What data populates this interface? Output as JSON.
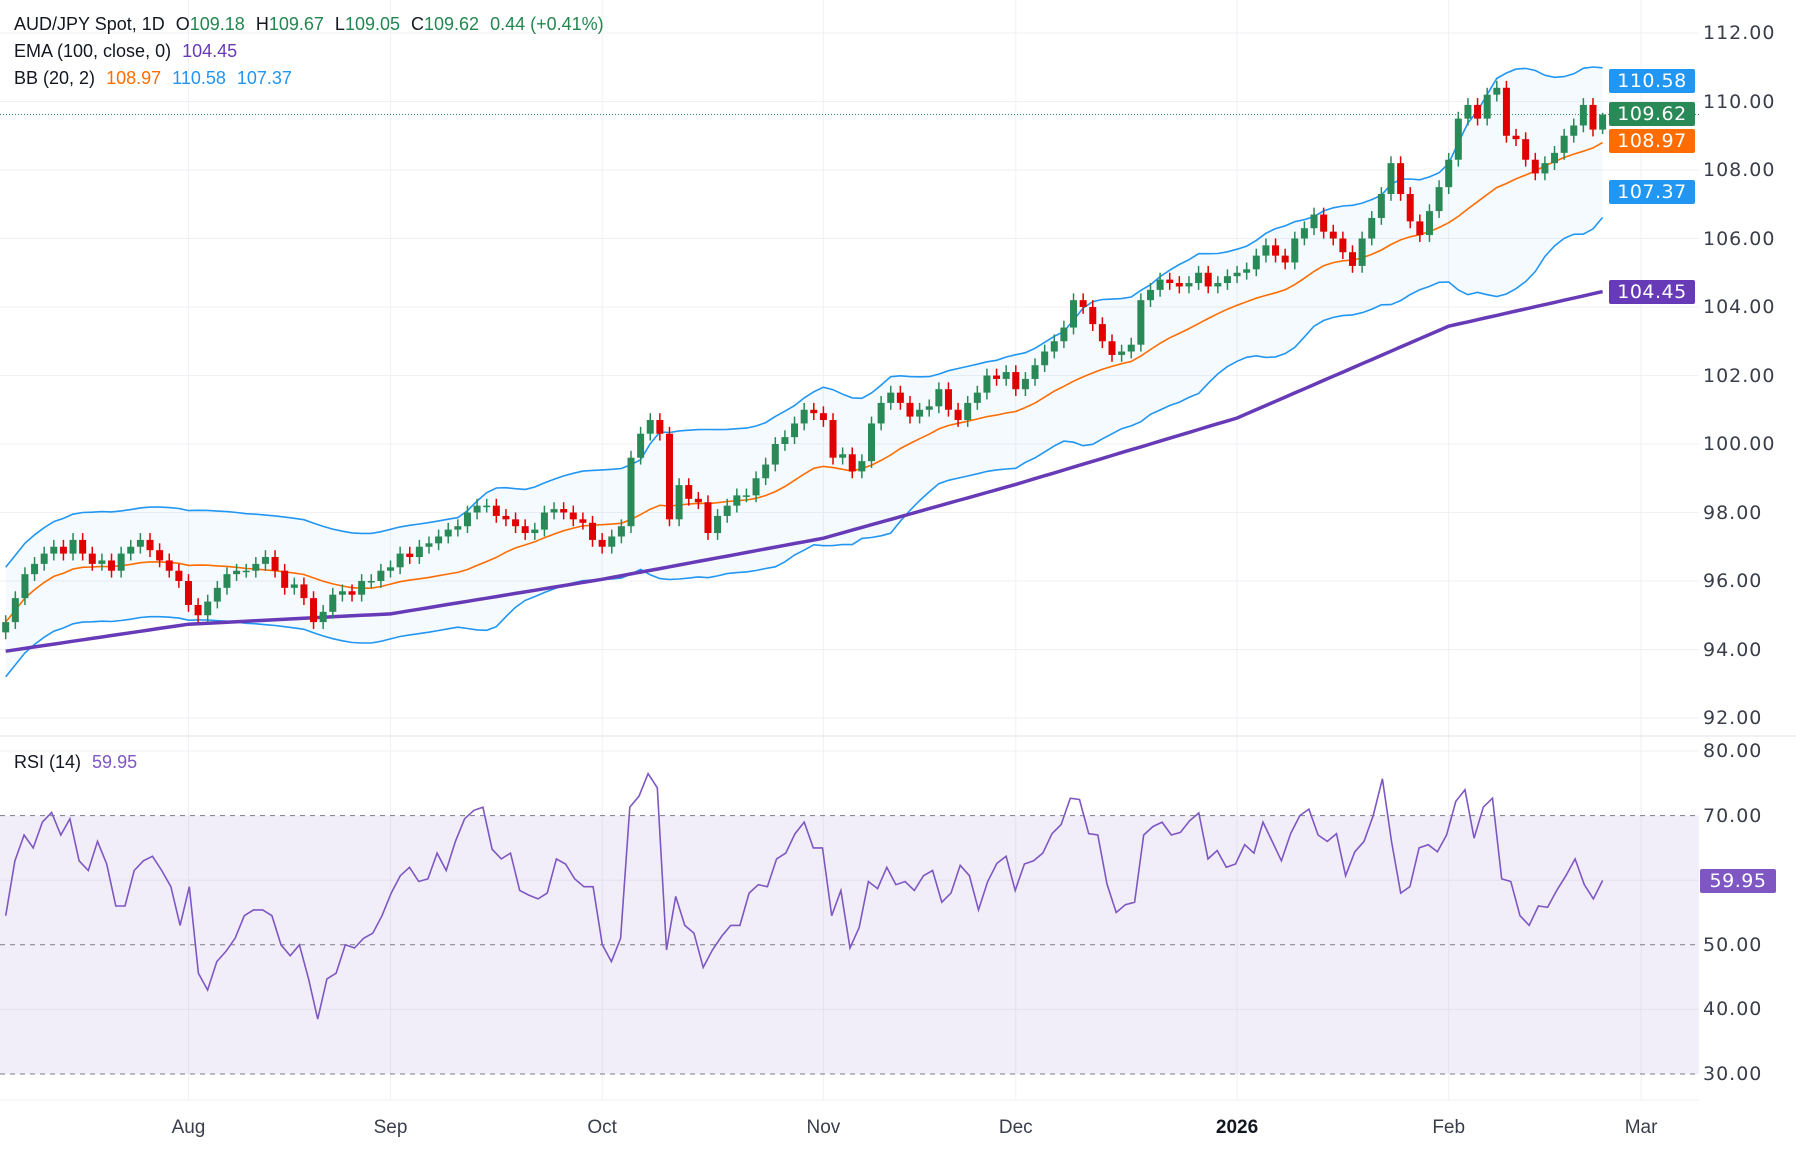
{
  "header": {
    "symbol": "AUD/JPY Spot, 1D",
    "o_label": "O",
    "o": "109.18",
    "h_label": "H",
    "h": "109.67",
    "l_label": "L",
    "l": "109.05",
    "c_label": "C",
    "c": "109.62",
    "change": "0.44 (+0.41%)"
  },
  "ema_legend": {
    "label": "EMA (100, close, 0)",
    "value": "104.45"
  },
  "bb_legend": {
    "label": "BB (20, 2)",
    "basis": "108.97",
    "upper": "110.58",
    "lower": "107.37"
  },
  "rsi_legend": {
    "label": "RSI (14)",
    "value": "59.95"
  },
  "colors": {
    "up": "#2a8a57",
    "down": "#e00000",
    "ema": "#673ab7",
    "bb_basis": "#ff6d00",
    "bb_band": "#2196f3",
    "rsi": "#7e57c2",
    "grid": "#f0f1f4",
    "last_price": "#2a8a57"
  },
  "chart_data": [
    {
      "type": "candlestick",
      "yticks": [
        "112.00",
        "110.00",
        "108.00",
        "106.00",
        "104.00",
        "102.00",
        "100.00",
        "98.00",
        "96.00",
        "94.00",
        "92.00"
      ],
      "ylim": [
        91.4,
        112.4
      ],
      "grid": true,
      "closes_by_month": {
        "2025-07": [
          94.8,
          95.5,
          96.2,
          96.5,
          96.8,
          97.0,
          96.8,
          97.2,
          96.8,
          96.5,
          96.6,
          96.3,
          96.8,
          97.0,
          97.2,
          96.9,
          96.6,
          96.3,
          96.0
        ],
        "2025-08": [
          95.3,
          95.0,
          95.4,
          95.8,
          96.2,
          96.3,
          96.3,
          96.5,
          96.7,
          96.3,
          95.8,
          95.9,
          95.5,
          94.8,
          95.1,
          95.6,
          95.7,
          95.6,
          96.0,
          96.0,
          96.3
        ],
        "2025-09": [
          96.4,
          96.8,
          96.7,
          97.0,
          97.1,
          97.3,
          97.5,
          97.6,
          98.0,
          98.2,
          98.2,
          97.9,
          97.8,
          97.6,
          97.4,
          97.5,
          98.0,
          98.1,
          98.0,
          97.8,
          97.7,
          97.2
        ],
        "2025-10": [
          97.0,
          97.3,
          97.6,
          99.6,
          100.3,
          100.7,
          100.3,
          97.8,
          98.8,
          98.4,
          98.3,
          97.4,
          97.9,
          98.2,
          98.5,
          98.5,
          99.0,
          99.4,
          100.0,
          100.2,
          100.6,
          101.0,
          100.9
        ],
        "2025-11": [
          100.7,
          99.6,
          99.7,
          99.2,
          99.5,
          100.6,
          101.2,
          101.5,
          101.2,
          100.8,
          101.0,
          101.1,
          101.6,
          101.0,
          100.7,
          101.2,
          101.5,
          102.0,
          101.9,
          102.1
        ],
        "2025-12": [
          101.6,
          101.9,
          102.3,
          102.7,
          103.0,
          103.4,
          104.2,
          104.0,
          103.5,
          103.0,
          102.6,
          102.7,
          102.9,
          104.2,
          104.5,
          104.8,
          104.7,
          104.6,
          104.7,
          105.0,
          104.6,
          104.7,
          104.9
        ],
        "2026-01": [
          105.0,
          105.1,
          105.5,
          105.8,
          105.5,
          105.3,
          106.0,
          106.3,
          106.7,
          106.2,
          106.0,
          105.6,
          105.2,
          106.0,
          106.6,
          107.3,
          108.2,
          107.3,
          106.5,
          106.1,
          106.8,
          107.5
        ],
        "2026-02": [
          108.3,
          109.5,
          109.9,
          109.5,
          110.2,
          110.4,
          109.0,
          108.9,
          108.3,
          107.9,
          108.2,
          108.5,
          109.0,
          109.3,
          109.9,
          109.18,
          109.62
        ]
      },
      "last_candle": {
        "open": 109.18,
        "high": 109.67,
        "low": 109.05,
        "close": 109.62
      },
      "ema100_at_month_start": {
        "2025-07": 93.95,
        "2025-08": 94.74,
        "2025-09": 95.04,
        "2025-10": 96.05,
        "2025-11": 97.25,
        "2025-12": 98.82,
        "2026-01": 100.76,
        "2026-02": 103.44,
        "last": 104.45
      },
      "badges": [
        {
          "value": "110.58",
          "series": "bb_upper"
        },
        {
          "value": "109.62",
          "series": "last_price"
        },
        {
          "value": "108.97",
          "series": "bb_basis"
        },
        {
          "value": "107.37",
          "series": "bb_lower"
        },
        {
          "value": "104.45",
          "series": "ema"
        }
      ]
    },
    {
      "type": "line",
      "title": "RSI (14)",
      "yticks": [
        "80.00",
        "70.00",
        "50.00",
        "40.00",
        "30.00"
      ],
      "ylim": [
        24,
        82
      ],
      "bands": [
        70,
        50,
        30
      ],
      "values": [
        54.5,
        63,
        67,
        65,
        69,
        70.5,
        67,
        69.5,
        63,
        61.5,
        66,
        62.5,
        56,
        56,
        61.5,
        63,
        63.7,
        61.5,
        59,
        53,
        59,
        45.6,
        43,
        47.4,
        49,
        51,
        54.5,
        55.4,
        55.4,
        54.5,
        50,
        48.3,
        50,
        44.7,
        38.5,
        44.7,
        45.6,
        50,
        49.5,
        51,
        51.8,
        54.5,
        58,
        60.7,
        62,
        59.8,
        60.2,
        64.2,
        61.5,
        66,
        69.5,
        70.8,
        71.3,
        64.8,
        63.3,
        64.2,
        58.4,
        57.7,
        57.1,
        58,
        63.3,
        62.5,
        60.2,
        59,
        59,
        50,
        47.4,
        51,
        71.3,
        73,
        76.5,
        74.3,
        49.2,
        57.5,
        53,
        51.8,
        46.5,
        49.2,
        51.3,
        53,
        53,
        58,
        59.3,
        59,
        63.3,
        64.2,
        67.2,
        69,
        65,
        65,
        54.5,
        58.4,
        49.5,
        52.7,
        59.8,
        58.7,
        62,
        59.3,
        59.8,
        58.4,
        60.7,
        61.5,
        56.6,
        58,
        62.3,
        60.7,
        55.4,
        59.8,
        62.6,
        63.7,
        58.4,
        62.5,
        63,
        64.2,
        67.2,
        68.6,
        72.7,
        72.5,
        67.2,
        67,
        59.4,
        55,
        56.2,
        56.6,
        67,
        68.3,
        69,
        67,
        67.4,
        69.2,
        70.4,
        63.3,
        64.6,
        62,
        62.5,
        65.5,
        64.2,
        69,
        66,
        63,
        67.2,
        70,
        71,
        67,
        66,
        67.2,
        60.7,
        64.4,
        66,
        70,
        75.7,
        66,
        58,
        59,
        65,
        65.5,
        64.4,
        67,
        72.2,
        74,
        66.5,
        71.3,
        72.7,
        60.2,
        59.8,
        54.5,
        53,
        56,
        55.8,
        58.4,
        60.7,
        63.3,
        59.3,
        57.1,
        59.95
      ],
      "badge": "59.95"
    }
  ],
  "x_axis": {
    "months": [
      {
        "key": "2025-08",
        "label": "Aug",
        "bold": false
      },
      {
        "key": "2025-09",
        "label": "Sep",
        "bold": false
      },
      {
        "key": "2025-10",
        "label": "Oct",
        "bold": false
      },
      {
        "key": "2025-11",
        "label": "Nov",
        "bold": false
      },
      {
        "key": "2025-12",
        "label": "Dec",
        "bold": false
      },
      {
        "key": "2026-01",
        "label": "2026",
        "bold": true
      }
    ],
    "feb_label": "Feb",
    "mar_label": "Mar"
  }
}
